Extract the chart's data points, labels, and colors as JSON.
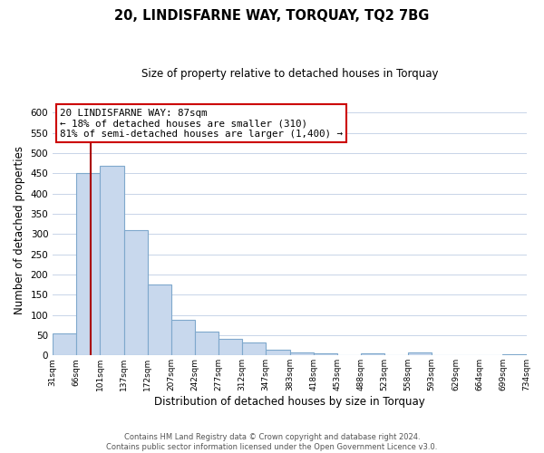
{
  "title": "20, LINDISFARNE WAY, TORQUAY, TQ2 7BG",
  "subtitle": "Size of property relative to detached houses in Torquay",
  "xlabel": "Distribution of detached houses by size in Torquay",
  "ylabel": "Number of detached properties",
  "bar_edges": [
    31,
    66,
    101,
    137,
    172,
    207,
    242,
    277,
    312,
    347,
    383,
    418,
    453,
    488,
    523,
    558,
    593,
    629,
    664,
    699,
    734
  ],
  "bar_heights": [
    55,
    450,
    470,
    310,
    175,
    88,
    58,
    42,
    32,
    15,
    8,
    5,
    1,
    5,
    1,
    8,
    1,
    0,
    0,
    3
  ],
  "tick_labels": [
    "31sqm",
    "66sqm",
    "101sqm",
    "137sqm",
    "172sqm",
    "207sqm",
    "242sqm",
    "277sqm",
    "312sqm",
    "347sqm",
    "383sqm",
    "418sqm",
    "453sqm",
    "488sqm",
    "523sqm",
    "558sqm",
    "593sqm",
    "629sqm",
    "664sqm",
    "699sqm",
    "734sqm"
  ],
  "bar_fill_color": "#c8d8ed",
  "bar_edge_color": "#7fa8cc",
  "property_line_x": 87,
  "property_line_color": "#aa0000",
  "ylim": [
    0,
    620
  ],
  "yticks": [
    0,
    50,
    100,
    150,
    200,
    250,
    300,
    350,
    400,
    450,
    500,
    550,
    600
  ],
  "annotation_title": "20 LINDISFARNE WAY: 87sqm",
  "annotation_line1": "← 18% of detached houses are smaller (310)",
  "annotation_line2": "81% of semi-detached houses are larger (1,400) →",
  "annotation_box_color": "#ffffff",
  "annotation_box_edge": "#cc0000",
  "footnote1": "Contains HM Land Registry data © Crown copyright and database right 2024.",
  "footnote2": "Contains public sector information licensed under the Open Government Licence v3.0.",
  "bg_color": "#ffffff",
  "grid_color": "#c8d4e8"
}
